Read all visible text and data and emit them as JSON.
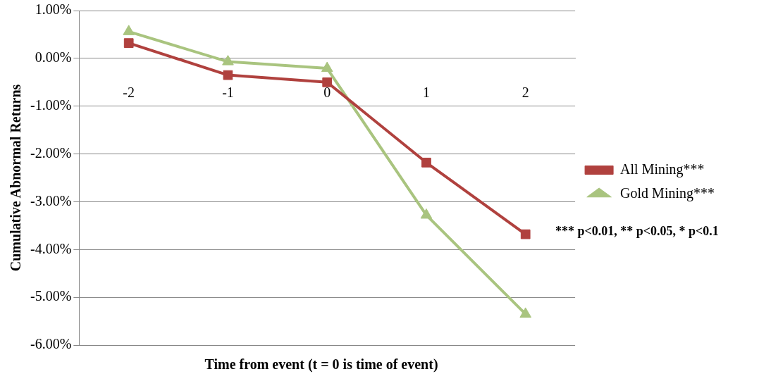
{
  "chart_data": {
    "type": "line",
    "xlabel": "Time from event (t = 0 is time of event)",
    "ylabel": "Cumulative Abnormal Returns",
    "categories": [
      "-2",
      "-1",
      "0",
      "1",
      "2"
    ],
    "series": [
      {
        "name": "All Mining***",
        "color": "#b0413e",
        "marker": "square",
        "values": [
          0.32,
          -0.35,
          -0.5,
          -2.18,
          -3.68
        ]
      },
      {
        "name": "Gold Mining***",
        "color": "#a9c47f",
        "marker": "triangle",
        "values": [
          0.56,
          -0.07,
          -0.21,
          -3.28,
          -5.35
        ]
      }
    ],
    "ylim": [
      -6,
      1
    ],
    "yticks": [
      {
        "value": 1,
        "label": "1.00%"
      },
      {
        "value": 0,
        "label": "0.00%"
      },
      {
        "value": -1,
        "label": "-1.00%"
      },
      {
        "value": -2,
        "label": "-2.00%"
      },
      {
        "value": -3,
        "label": "-3.00%"
      },
      {
        "value": -4,
        "label": "-4.00%"
      },
      {
        "value": -5,
        "label": "-5.00%"
      },
      {
        "value": -6,
        "label": "-6.00%"
      }
    ],
    "grid": "y",
    "legend": "right",
    "line_style": "solid",
    "annotations": [
      "*** p<0.01, ** p<0.05, * p<0.1"
    ]
  }
}
